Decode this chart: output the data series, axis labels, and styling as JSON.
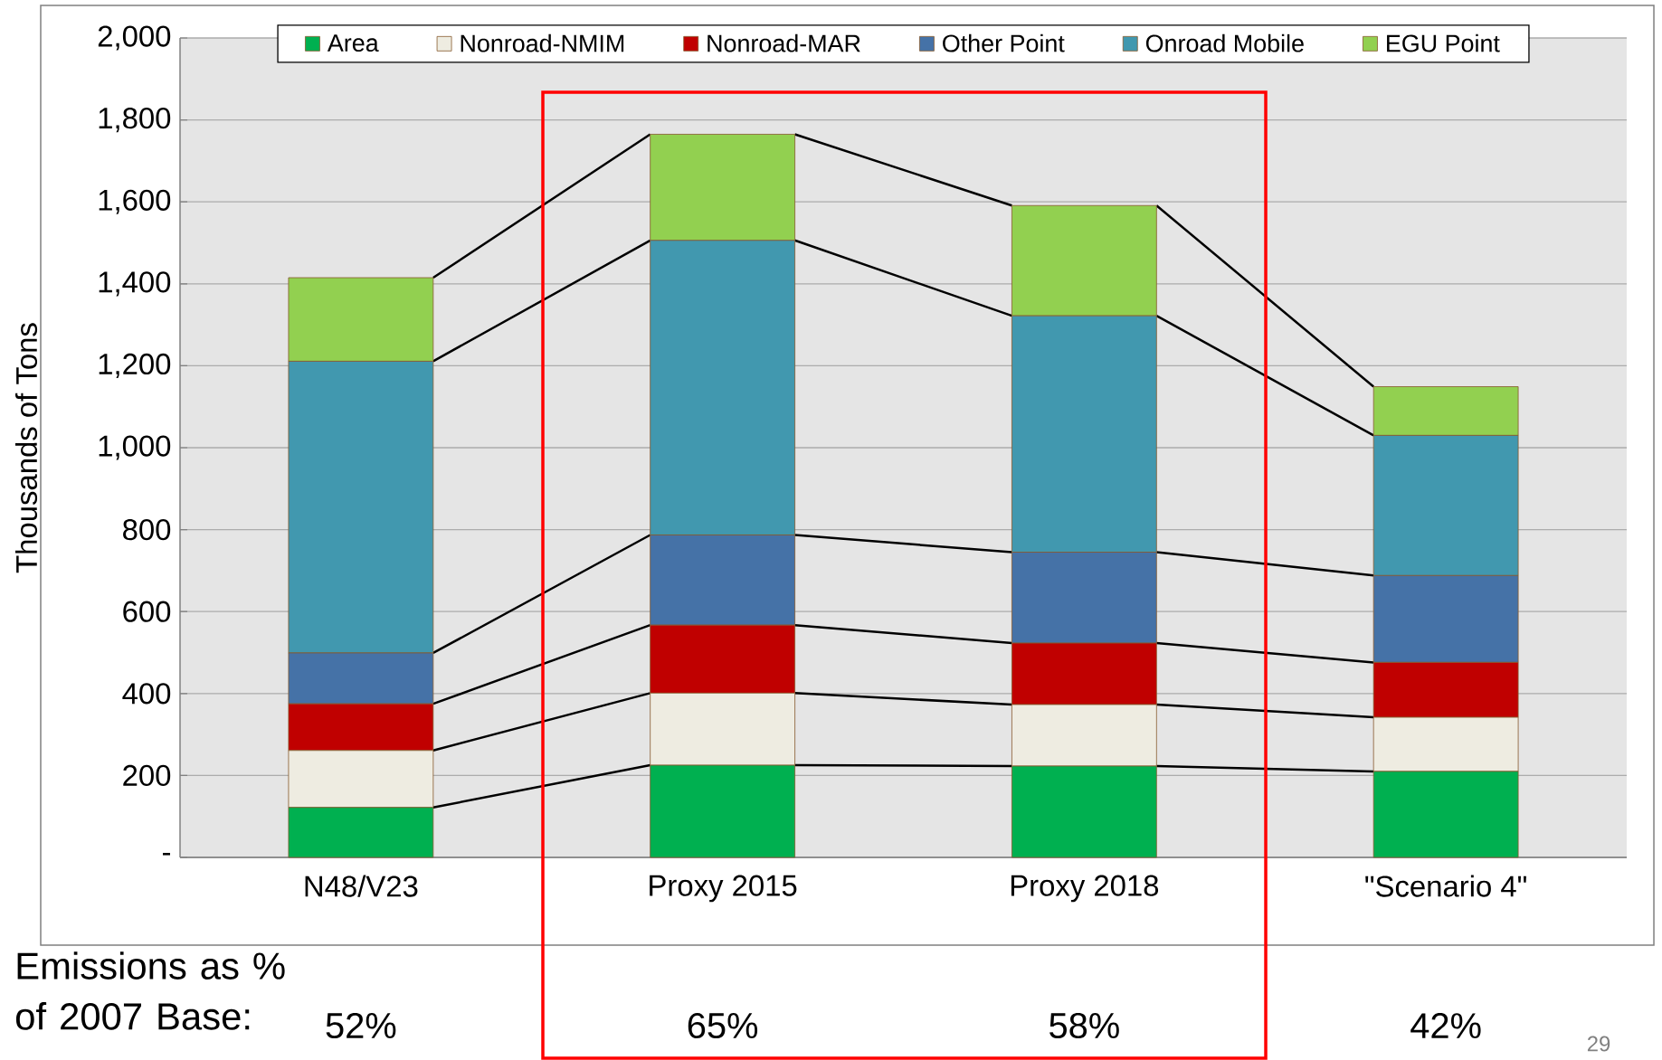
{
  "chart_data": {
    "type": "bar",
    "stacked": true,
    "ylabel": "Thousands of Tons",
    "categories": [
      "N48/V23",
      "Proxy 2015",
      "Proxy 2018",
      "\"Scenario 4\""
    ],
    "series": [
      {
        "name": "Area",
        "color": "#00b050",
        "values": [
          122,
          225,
          223,
          210
        ]
      },
      {
        "name": "Nonroad-NMIM",
        "color": "#eeece1",
        "values": [
          139,
          176,
          150,
          132
        ]
      },
      {
        "name": "Nonroad-MAR",
        "color": "#c00000",
        "values": [
          114,
          166,
          150,
          134
        ]
      },
      {
        "name": "Other Point",
        "color": "#4572a7",
        "values": [
          124,
          220,
          222,
          212
        ]
      },
      {
        "name": "Onroad Mobile",
        "color": "#4198af",
        "values": [
          712,
          719,
          577,
          342
        ]
      },
      {
        "name": "EGU Point",
        "color": "#92d050",
        "values": [
          204,
          259,
          269,
          119
        ]
      }
    ],
    "ylim": [
      0,
      2000
    ],
    "yticks": [
      {
        "value": 0,
        "label": "-"
      },
      {
        "value": 200,
        "label": "200"
      },
      {
        "value": 400,
        "label": "400"
      },
      {
        "value": 600,
        "label": "600"
      },
      {
        "value": 800,
        "label": "800"
      },
      {
        "value": 1000,
        "label": "1,000"
      },
      {
        "value": 1200,
        "label": "1,200"
      },
      {
        "value": 1400,
        "label": "1,400"
      },
      {
        "value": 1600,
        "label": "1,600"
      },
      {
        "value": 1800,
        "label": "1,800"
      },
      {
        "value": 2000,
        "label": "2,000"
      }
    ],
    "grid": "y",
    "legend": "top",
    "annotations": [
      "Emissions as % of 2007 Base:",
      "29",
      "52%",
      "65%",
      "58%",
      "42%"
    ]
  }
}
